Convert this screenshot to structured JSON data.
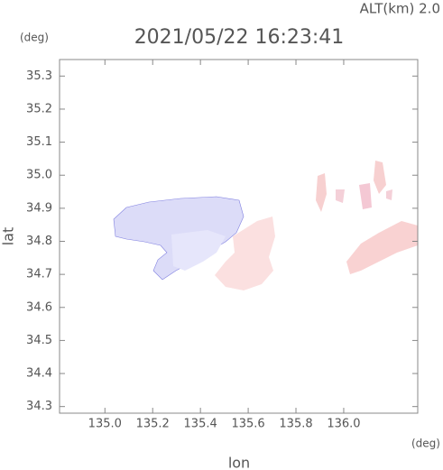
{
  "chart_data": {
    "type": "map",
    "subtitle": "ALT(km) 2.0",
    "title": "2021/05/22 16:23:41",
    "y_unit": "(deg)",
    "x_unit": "(deg)",
    "xlabel": "lon",
    "ylabel": "lat",
    "xlim": [
      134.81,
      136.31
    ],
    "ylim": [
      34.28,
      35.35
    ],
    "xticks": [
      {
        "value": 135,
        "label": "135.0"
      },
      135.2,
      135.4,
      135.6,
      135.8,
      {
        "value": 136,
        "label": "136.0"
      }
    ],
    "yticks": [
      34.3,
      34.4,
      34.5,
      34.6,
      34.7,
      34.8,
      34.9,
      {
        "value": 35,
        "label": "35.0"
      },
      35.1,
      35.2,
      35.3
    ]
  }
}
